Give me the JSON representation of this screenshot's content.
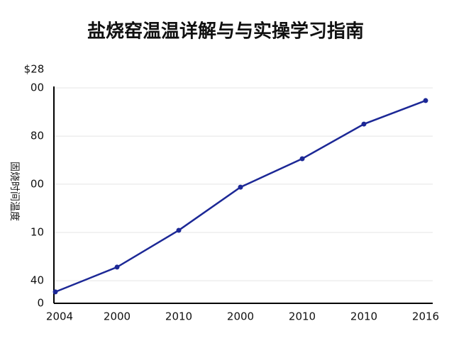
{
  "chart_data": {
    "type": "line",
    "title": "盐烧窑温温详解与与实操学习指南",
    "y_unit": "$28",
    "y_label": "固烧时间温度",
    "categories": [
      "2004",
      "2000",
      "2010",
      "2000",
      "2010",
      "2010",
      "2016"
    ],
    "series": [
      {
        "color": "#1c2896",
        "values": [
          5.3,
          16.8,
          33.9,
          53.9,
          67.1,
          83.2,
          94.1
        ]
      }
    ],
    "ylim": [
      0,
      100
    ],
    "yticks": [
      0,
      {
        "value": 10.5,
        "label": "40"
      },
      {
        "value": 32.9,
        "label": "10"
      },
      {
        "value": 55.3,
        "label": "00"
      },
      {
        "value": 77.6,
        "label": "80"
      },
      {
        "value": 100,
        "label": "00"
      }
    ],
    "grid": true
  }
}
